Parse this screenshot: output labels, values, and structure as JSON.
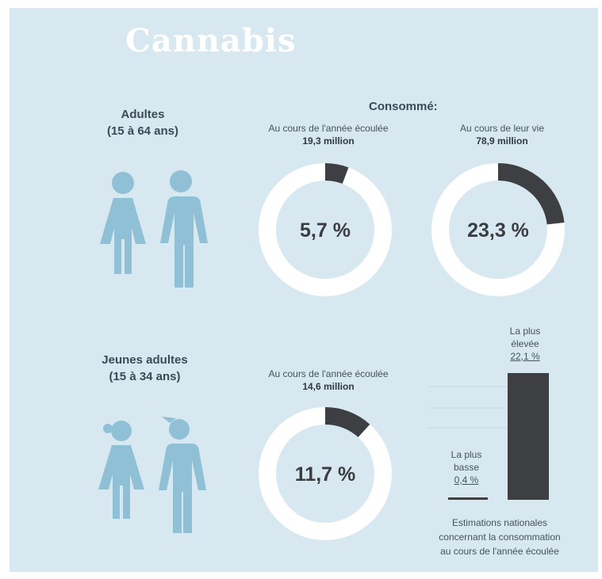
{
  "title": "Cannabis",
  "adults": {
    "label_line1": "Adultes",
    "label_line2": "(15 à 64 ans)"
  },
  "young_adults": {
    "label_line1": "Jeunes adultes",
    "label_line2": "(15 à 34 ans)"
  },
  "consumed_heading": "Consommé:",
  "donut_adults_year": {
    "caption": "Au cours de l'année écoulée",
    "count": "19,3 million",
    "value_label": "5,7 %",
    "percent": 5.7
  },
  "donut_adults_life": {
    "caption": "Au cours de leur vie",
    "count": "78,9 million",
    "value_label": "23,3 %",
    "percent": 23.3
  },
  "donut_young_year": {
    "caption": "Au cours de l'année écoulée",
    "count": "14,6 million",
    "value_label": "11,7 %",
    "percent": 11.7
  },
  "range_bars": {
    "high": {
      "label_line1": "La plus",
      "label_line2": "élevée",
      "value_label": "22,1 %",
      "value": 22.1
    },
    "low": {
      "label_line1": "La plus",
      "label_line2": "basse",
      "value_label": "0,4 %",
      "value": 0.4
    }
  },
  "footnote": {
    "line1": "Estimations nationales",
    "line2": "concernant la consommation",
    "line3": "au cours de l'année écoulée"
  },
  "colors": {
    "background": "#d8e8f0",
    "ring": "#ffffff",
    "highlight": "#3d3f42",
    "figure": "#8fc0d6"
  },
  "chart_data": [
    {
      "type": "pie",
      "title": "Au cours de l'année écoulée",
      "subtitle": "19,3 million",
      "values": [
        5.7,
        94.3
      ],
      "unit": "%"
    },
    {
      "type": "pie",
      "title": "Au cours de leur vie",
      "subtitle": "78,9 million",
      "values": [
        23.3,
        76.7
      ],
      "unit": "%"
    },
    {
      "type": "pie",
      "title": "Au cours de l'année écoulée",
      "subtitle": "14,6 million",
      "values": [
        11.7,
        88.3
      ],
      "unit": "%"
    },
    {
      "type": "bar",
      "categories": [
        "La plus basse",
        "La plus élevée"
      ],
      "values": [
        0.4,
        22.1
      ],
      "unit": "%",
      "title": "Estimations nationales concernant la consommation au cours de l'année écoulée"
    }
  ]
}
